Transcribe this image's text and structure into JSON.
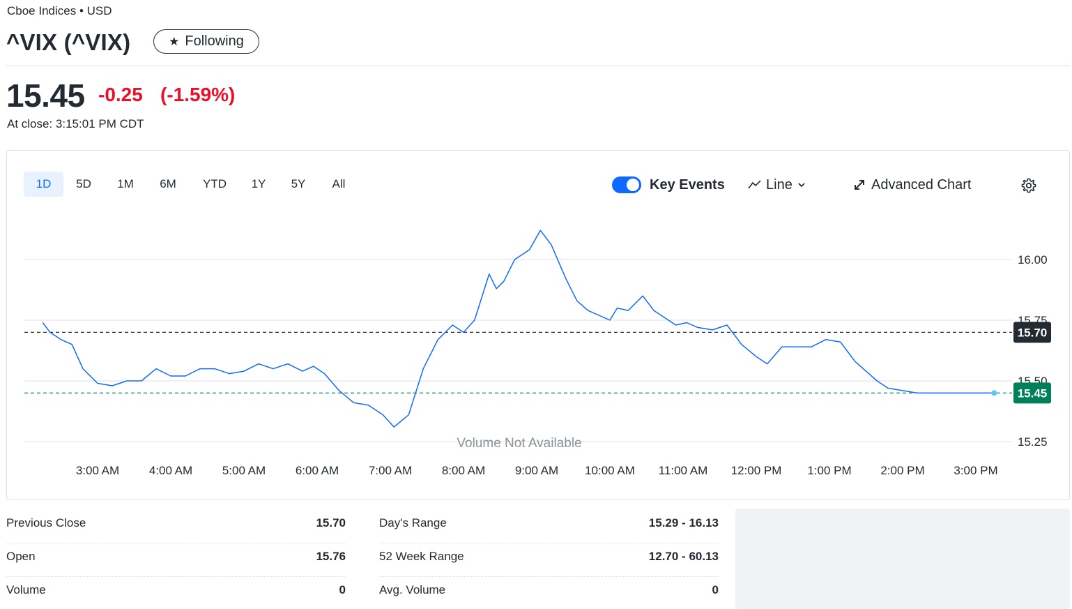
{
  "header": {
    "exchange": "Cboe Indices • USD",
    "title": "^VIX (^VIX)",
    "follow_label": "Following"
  },
  "quote": {
    "price": "15.45",
    "change": "-0.25",
    "change_pct": "(-1.59%)",
    "at_close": "At close: 3:15:01 PM CDT"
  },
  "colors": {
    "negative": "#eb0f29",
    "accent": "#0f69ff",
    "line": "#0f69ff",
    "last_badge": "#00805a",
    "prev_badge": "#232a31"
  },
  "chart_toolbar": {
    "ranges": [
      "1D",
      "5D",
      "1M",
      "6M",
      "YTD",
      "1Y",
      "5Y",
      "All"
    ],
    "active_range": "1D",
    "key_events_label": "Key Events",
    "key_events_on": true,
    "line_label": "Line",
    "advanced_label": "Advanced Chart"
  },
  "chart_data": {
    "type": "line",
    "x_ticks": [
      "3:00 AM",
      "4:00 AM",
      "5:00 AM",
      "6:00 AM",
      "7:00 AM",
      "8:00 AM",
      "9:00 AM",
      "10:00 AM",
      "11:00 AM",
      "12:00 PM",
      "1:00 PM",
      "2:00 PM",
      "3:00 PM"
    ],
    "y_ticks": [
      "16.00",
      "15.75",
      "15.50",
      "15.25"
    ],
    "ylim": [
      15.25,
      16.0
    ],
    "reference_lines": [
      {
        "label": "15.70",
        "value": 15.7,
        "style": "dashed",
        "color": "#232a31"
      },
      {
        "label": "15.45",
        "value": 15.45,
        "style": "dashed",
        "color": "#00805a"
      }
    ],
    "empty_volume_text": "Volume Not Available",
    "series": [
      {
        "x_hours": [
          2.25,
          2.35,
          2.5,
          2.65,
          2.8,
          3.0,
          3.2,
          3.4,
          3.6,
          3.8,
          4.0,
          4.2,
          4.4,
          4.6,
          4.8,
          5.0,
          5.2,
          5.4,
          5.6,
          5.8,
          5.95,
          6.1,
          6.3,
          6.5,
          6.7,
          6.9,
          7.05,
          7.25,
          7.45,
          7.65,
          7.85,
          8.0,
          8.15,
          8.35,
          8.45,
          8.55,
          8.7,
          8.9,
          9.05,
          9.2,
          9.4,
          9.55,
          9.7,
          9.85,
          10.0,
          10.1,
          10.25,
          10.45,
          10.6,
          10.75,
          10.9,
          11.05,
          11.2,
          11.4,
          11.6,
          11.8,
          12.0,
          12.15,
          12.35,
          12.55,
          12.75,
          12.95,
          13.15,
          13.35,
          13.5,
          13.65,
          13.8,
          14.0,
          14.2,
          14.4,
          14.6,
          14.8,
          15.0,
          15.1,
          15.2,
          15.25
        ],
        "values": [
          15.74,
          15.7,
          15.67,
          15.65,
          15.55,
          15.49,
          15.48,
          15.5,
          15.5,
          15.55,
          15.52,
          15.52,
          15.55,
          15.55,
          15.53,
          15.54,
          15.57,
          15.55,
          15.57,
          15.54,
          15.56,
          15.53,
          15.46,
          15.41,
          15.4,
          15.36,
          15.31,
          15.36,
          15.55,
          15.67,
          15.73,
          15.7,
          15.75,
          15.94,
          15.88,
          15.91,
          16.0,
          16.04,
          16.12,
          16.06,
          15.92,
          15.83,
          15.79,
          15.77,
          15.75,
          15.8,
          15.79,
          15.85,
          15.79,
          15.76,
          15.73,
          15.74,
          15.72,
          15.71,
          15.73,
          15.65,
          15.6,
          15.57,
          15.64,
          15.64,
          15.64,
          15.67,
          15.66,
          15.58,
          15.54,
          15.5,
          15.47,
          15.46,
          15.45,
          15.45,
          15.45,
          15.45,
          15.45,
          15.45,
          15.45,
          15.45
        ]
      }
    ]
  },
  "stats": {
    "left": [
      {
        "label": "Previous Close",
        "value": "15.70"
      },
      {
        "label": "Open",
        "value": "15.76"
      },
      {
        "label": "Volume",
        "value": "0"
      }
    ],
    "right": [
      {
        "label": "Day's Range",
        "value": "15.29 - 16.13"
      },
      {
        "label": "52 Week Range",
        "value": "12.70 - 60.13"
      },
      {
        "label": "Avg. Volume",
        "value": "0"
      }
    ]
  }
}
